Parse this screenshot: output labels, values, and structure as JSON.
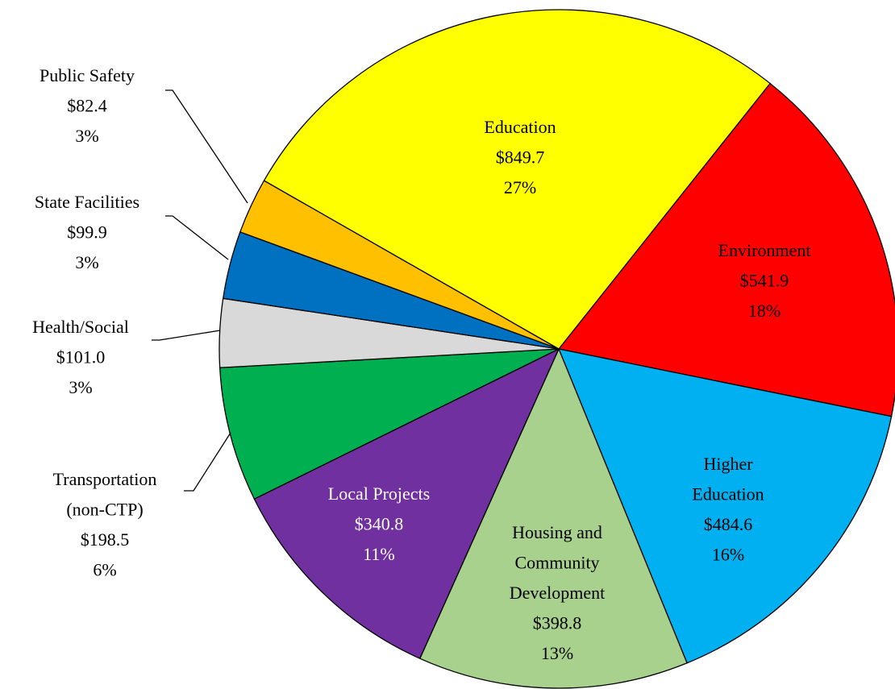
{
  "chart_data": {
    "type": "pie",
    "categories": [
      "Environment",
      "Higher\nEducation",
      "Housing and\nCommunity\nDevelopment",
      "Local Projects",
      "Transportation\n(non-CTP)",
      "Health/Social",
      "State Facilities",
      "Public Safety",
      "Education"
    ],
    "values": [
      541.9,
      484.6,
      398.8,
      340.8,
      198.5,
      101.0,
      99.9,
      82.4,
      849.7
    ],
    "value_labels": [
      "$541.9",
      "$484.6",
      "$398.8",
      "$340.8",
      "$198.5",
      "$101.0",
      "$99.9",
      "$82.4",
      "$849.7"
    ],
    "percent_labels": [
      "18%",
      "16%",
      "13%",
      "11%",
      "6%",
      "3%",
      "3%",
      "3%",
      "27%"
    ],
    "colors": [
      "#ff0000",
      "#00b0f0",
      "#a9d18e",
      "#7030a0",
      "#00b050",
      "#d9d9d9",
      "#0070c0",
      "#ffc000",
      "#ffff00"
    ],
    "text_colors": [
      "#000000",
      "#000000",
      "#000000",
      "#ffffff",
      "#000000",
      "#000000",
      "#000000",
      "#000000",
      "#000000"
    ]
  }
}
